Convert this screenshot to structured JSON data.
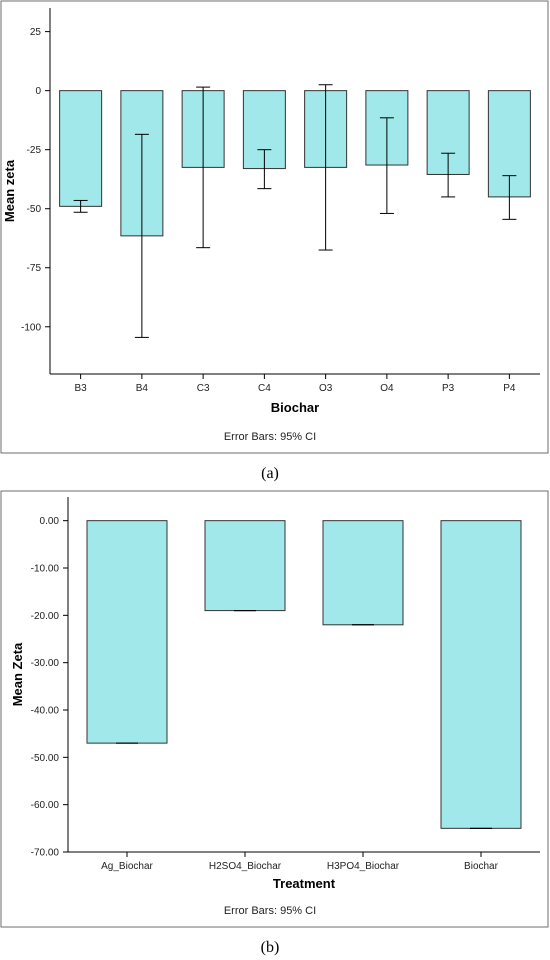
{
  "chart_data": [
    {
      "type": "bar",
      "panel_label": "(a)",
      "categories": [
        "B3",
        "B4",
        "C3",
        "C4",
        "O3",
        "O4",
        "P3",
        "P4"
      ],
      "values": [
        -49,
        -61.5,
        -32.5,
        -33,
        -32.5,
        -31.5,
        -35.5,
        -45
      ],
      "error_low": [
        -51.5,
        -104.5,
        -66.5,
        -41.5,
        -67.5,
        -52,
        -45,
        -54.5
      ],
      "error_high": [
        -46.5,
        -18.5,
        1.5,
        -25,
        2.5,
        -11.5,
        -26.5,
        -36
      ],
      "xlabel": "Biochar",
      "ylabel": "Mean zeta",
      "ylim": [
        -120,
        35
      ],
      "yticks": [
        25,
        0,
        -25,
        -50,
        -75,
        -100
      ],
      "ytick_labels": [
        "25",
        "0",
        "-25",
        "-50",
        "-75",
        "-100"
      ],
      "note": "Error Bars: 95% CI",
      "bar_color": "#a0e8ea",
      "grid": false
    },
    {
      "type": "bar",
      "panel_label": "(b)",
      "categories": [
        "Ag_Biochar",
        "H2SO4_Biochar",
        "H3PO4_Biochar",
        "Biochar"
      ],
      "values": [
        -47,
        -19,
        -22,
        -65
      ],
      "error_low": [
        -47,
        -19,
        -22,
        -65
      ],
      "error_high": [
        -47,
        -19,
        -22,
        -65
      ],
      "xlabel": "Treatment",
      "ylabel": "Mean Zeta",
      "ylim": [
        -70,
        5
      ],
      "yticks": [
        0,
        -10,
        -20,
        -30,
        -40,
        -50,
        -60,
        -70
      ],
      "ytick_labels": [
        "0.00",
        "-10.00",
        "-20.00",
        "-30.00",
        "-40.00",
        "-50.00",
        "-60.00",
        "-70.00"
      ],
      "note": "Error Bars: 95% CI",
      "bar_color": "#a0e8ea",
      "grid": false
    }
  ]
}
